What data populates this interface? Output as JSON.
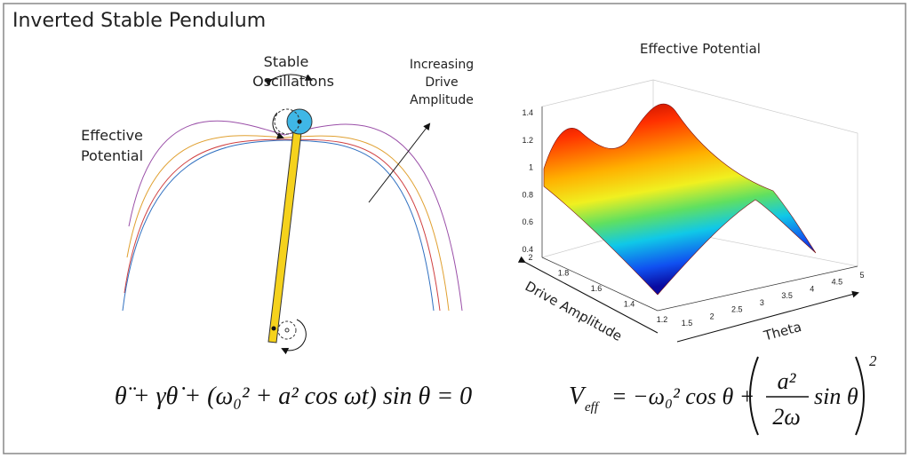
{
  "title": "Inverted Stable Pendulum",
  "left_panel": {
    "stable_label": [
      "Stable",
      "Oscillations"
    ],
    "potential_label": [
      "Effective",
      "Potential"
    ],
    "amplitude_label": [
      "Increasing",
      "Drive",
      "Amplitude"
    ],
    "equation": "θ̈ + γθ̇ + (ω₀² + a² cos ωt) sin θ = 0"
  },
  "right_panel": {
    "plot_title": "Effective Potential",
    "z_ticks": [
      "0.4",
      "0.6",
      "0.8",
      "1",
      "1.2",
      "1.4"
    ],
    "drive_ticks": [
      "1.2",
      "1.4",
      "1.6",
      "1.8",
      "2"
    ],
    "theta_ticks": [
      "1.5",
      "2",
      "2.5",
      "3",
      "3.5",
      "4",
      "4.5",
      "5"
    ],
    "drive_axis_label": "Drive Amplitude",
    "theta_axis_label": "Theta",
    "equation": {
      "lhs": "V",
      "lhs_sub": "eff",
      "middle": "= −ω₀² cos θ +",
      "numerator": "a²",
      "denominator": "2ω",
      "tail": "sin θ",
      "exponent": "2"
    }
  }
}
